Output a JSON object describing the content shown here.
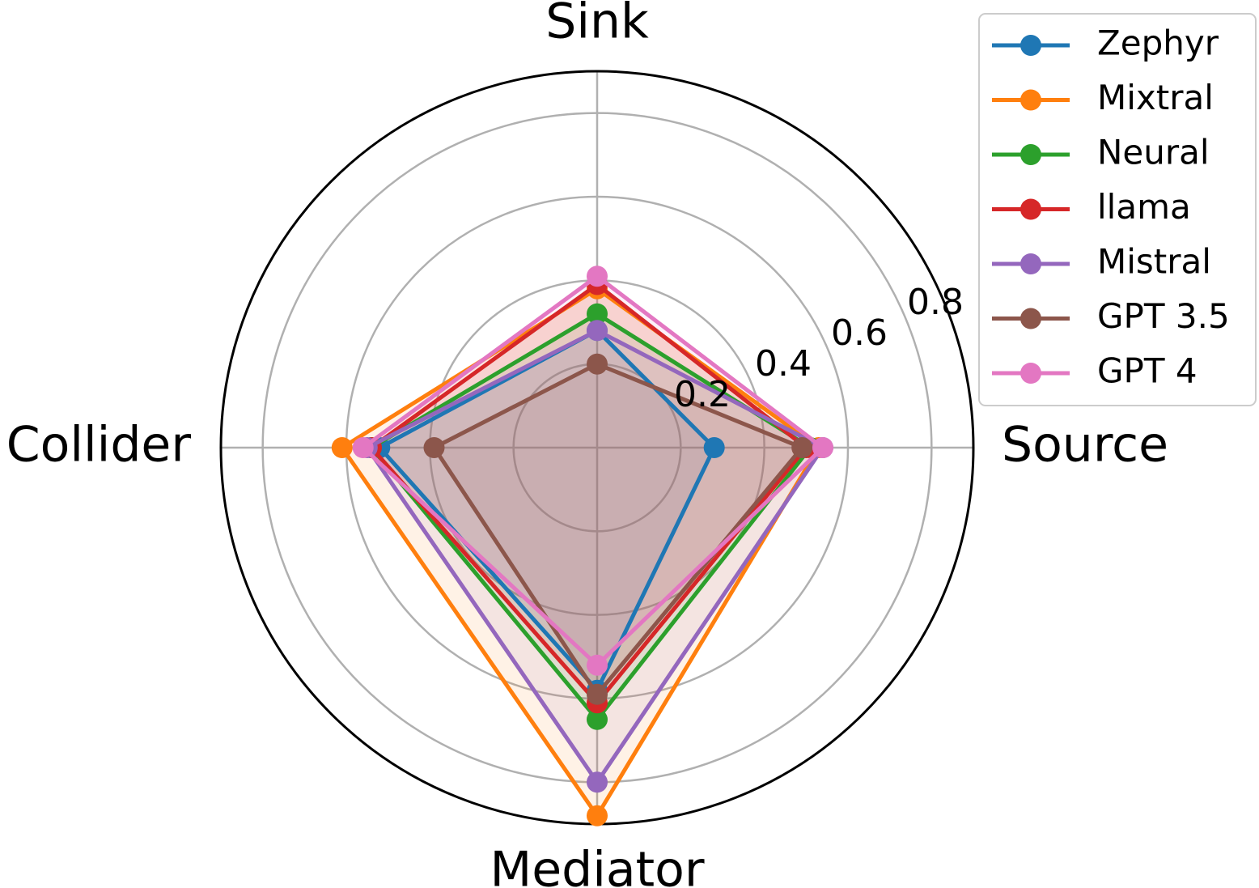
{
  "chart_data": {
    "type": "radar",
    "axes": [
      "Source",
      "Sink",
      "Collider",
      "Mediator"
    ],
    "rmax": 0.9,
    "ticks": [
      {
        "value": 0.2,
        "label": "0.2"
      },
      {
        "value": 0.4,
        "label": "0.4"
      },
      {
        "value": 0.6,
        "label": "0.6"
      },
      {
        "value": 0.8,
        "label": "0.8"
      }
    ],
    "grid": true,
    "legend_position": "top-right",
    "series": [
      {
        "name": "Zephyr",
        "color": "#1f77b4",
        "values": {
          "Source": 0.28,
          "Sink": 0.28,
          "Collider": 0.52,
          "Mediator": 0.58
        }
      },
      {
        "name": "Mixtral",
        "color": "#ff7f0e",
        "values": {
          "Source": 0.53,
          "Sink": 0.38,
          "Collider": 0.61,
          "Mediator": 0.88
        }
      },
      {
        "name": "Neural",
        "color": "#2ca02c",
        "values": {
          "Source": 0.51,
          "Sink": 0.32,
          "Collider": 0.54,
          "Mediator": 0.65
        }
      },
      {
        "name": "llama",
        "color": "#d62728",
        "values": {
          "Source": 0.5,
          "Sink": 0.39,
          "Collider": 0.54,
          "Mediator": 0.61
        }
      },
      {
        "name": "Mistral",
        "color": "#9467bd",
        "values": {
          "Source": 0.54,
          "Sink": 0.28,
          "Collider": 0.55,
          "Mediator": 0.8
        }
      },
      {
        "name": "GPT 3.5",
        "color": "#8c564b",
        "values": {
          "Source": 0.49,
          "Sink": 0.2,
          "Collider": 0.39,
          "Mediator": 0.59
        }
      },
      {
        "name": "GPT 4",
        "color": "#e377c2",
        "values": {
          "Source": 0.54,
          "Sink": 0.41,
          "Collider": 0.56,
          "Mediator": 0.52
        }
      }
    ]
  }
}
